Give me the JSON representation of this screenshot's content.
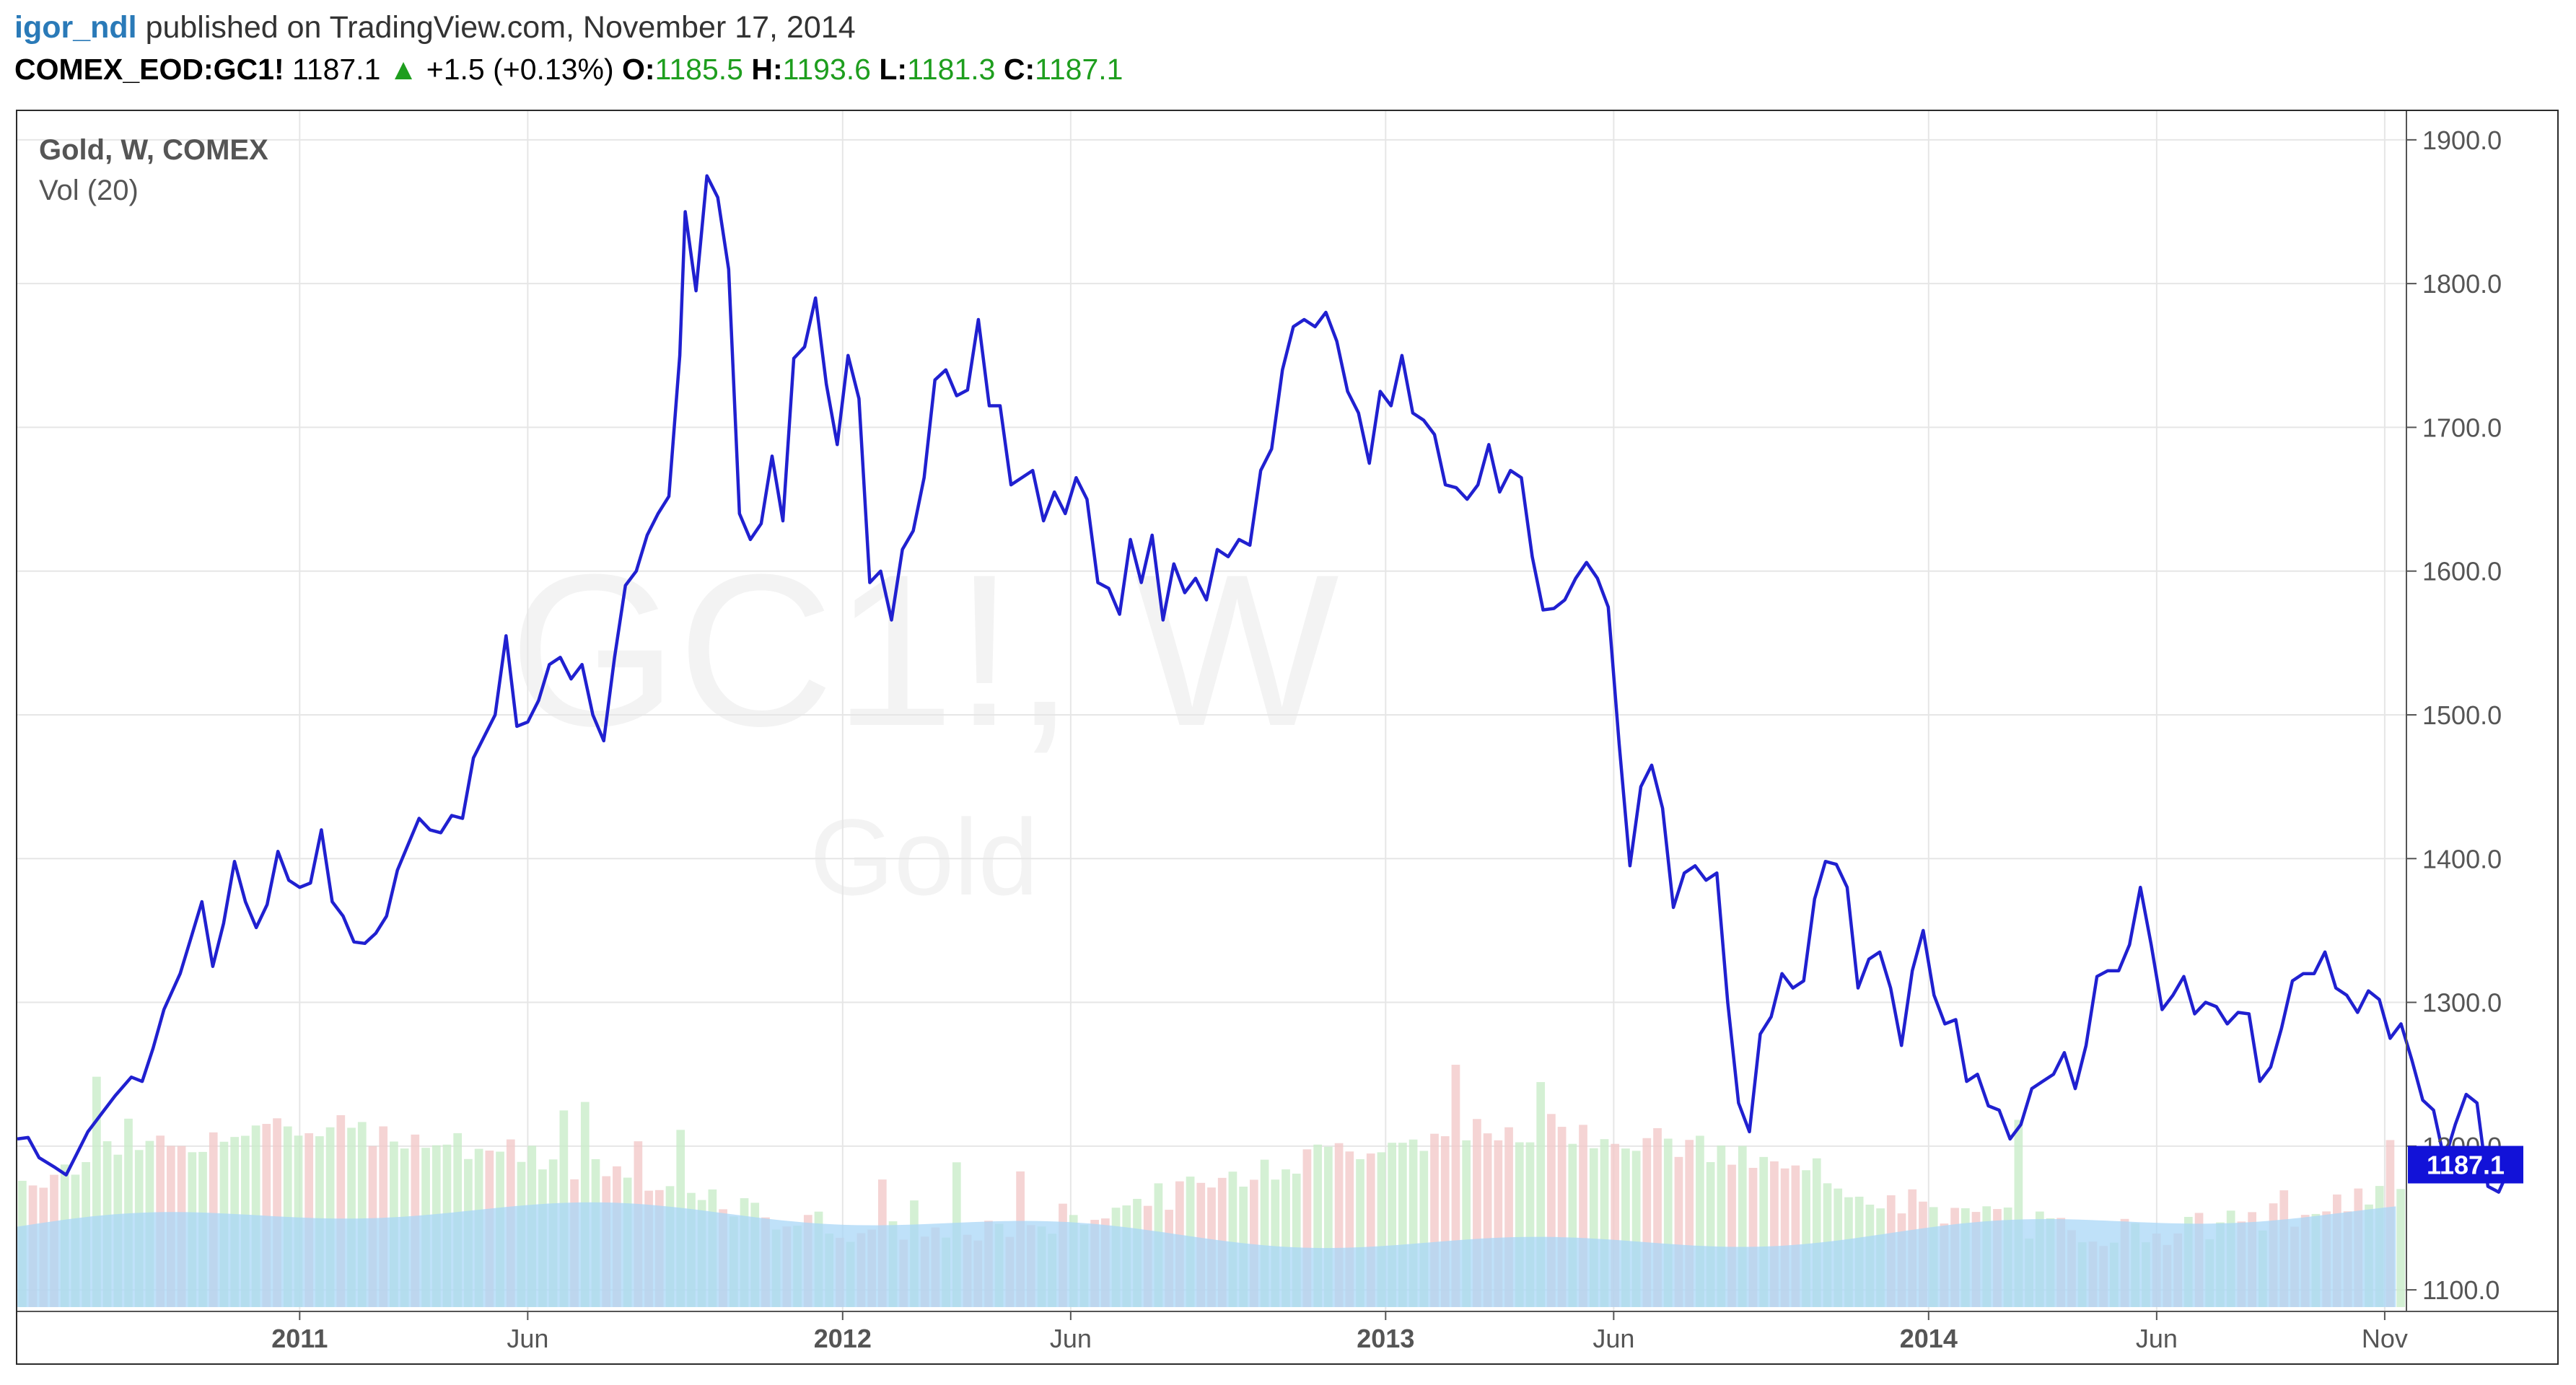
{
  "header": {
    "user": "igor_ndl",
    "published_text": "published on TradingView.com, November 17, 2014",
    "symbol": "COMEX_EOD:GC1!",
    "last": "1187.1",
    "change": "+1.5 (+0.13%)",
    "open_label": "O:",
    "open_value": "1185.5",
    "high_label": "H:",
    "high_value": "1193.6",
    "low_label": "L:",
    "low_value": "1181.3",
    "close_label": "C:",
    "close_value": "1187.1",
    "up_color": "#1e9e1e"
  },
  "legend": {
    "title": "Gold, W, COMEX",
    "volume": "Vol (20)"
  },
  "watermark": {
    "main": "GC1!, W",
    "sub": "Gold"
  },
  "chart_data": {
    "type": "line",
    "title": "Gold, W, COMEX",
    "line_color": "#2020d0",
    "x_ticks": [
      {
        "label": "2011",
        "x": 2011.0,
        "bold": true
      },
      {
        "label": "Jun",
        "x": 2011.42,
        "bold": false
      },
      {
        "label": "2012",
        "x": 2012.0,
        "bold": true
      },
      {
        "label": "Jun",
        "x": 2012.42,
        "bold": false
      },
      {
        "label": "2013",
        "x": 2013.0,
        "bold": true
      },
      {
        "label": "Jun",
        "x": 2013.42,
        "bold": false
      },
      {
        "label": "2014",
        "x": 2014.0,
        "bold": true
      },
      {
        "label": "Jun",
        "x": 2014.42,
        "bold": false
      },
      {
        "label": "Nov",
        "x": 2014.84,
        "bold": false
      }
    ],
    "x_range": [
      2010.48,
      2014.88
    ],
    "y_range": [
      1085,
      1920
    ],
    "y_ticks": [
      1100,
      1200,
      1300,
      1400,
      1500,
      1600,
      1700,
      1800,
      1900
    ],
    "y_tick_labels": [
      "1100.0",
      "1200.0",
      "1300.0",
      "1400.0",
      "1500.0",
      "1600.0",
      "1700.0",
      "1800.0",
      "1900.0"
    ],
    "last_value_label": "1187.1",
    "last_value": 1187.1,
    "grid": true,
    "price": [
      [
        2010.48,
        1205
      ],
      [
        2010.5,
        1206
      ],
      [
        2010.52,
        1192
      ],
      [
        2010.55,
        1185
      ],
      [
        2010.57,
        1180
      ],
      [
        2010.59,
        1195
      ],
      [
        2010.61,
        1210
      ],
      [
        2010.64,
        1225
      ],
      [
        2010.66,
        1235
      ],
      [
        2010.69,
        1248
      ],
      [
        2010.71,
        1245
      ],
      [
        2010.73,
        1268
      ],
      [
        2010.75,
        1295
      ],
      [
        2010.78,
        1320
      ],
      [
        2010.8,
        1345
      ],
      [
        2010.82,
        1370
      ],
      [
        2010.84,
        1325
      ],
      [
        2010.86,
        1355
      ],
      [
        2010.88,
        1398
      ],
      [
        2010.9,
        1370
      ],
      [
        2010.92,
        1352
      ],
      [
        2010.94,
        1368
      ],
      [
        2010.96,
        1405
      ],
      [
        2010.98,
        1385
      ],
      [
        2011.0,
        1380
      ],
      [
        2011.02,
        1383
      ],
      [
        2011.04,
        1420
      ],
      [
        2011.06,
        1370
      ],
      [
        2011.08,
        1360
      ],
      [
        2011.1,
        1342
      ],
      [
        2011.12,
        1341
      ],
      [
        2011.14,
        1348
      ],
      [
        2011.16,
        1360
      ],
      [
        2011.18,
        1392
      ],
      [
        2011.2,
        1410
      ],
      [
        2011.22,
        1428
      ],
      [
        2011.24,
        1420
      ],
      [
        2011.26,
        1418
      ],
      [
        2011.28,
        1430
      ],
      [
        2011.3,
        1428
      ],
      [
        2011.32,
        1470
      ],
      [
        2011.34,
        1485
      ],
      [
        2011.36,
        1500
      ],
      [
        2011.38,
        1555
      ],
      [
        2011.4,
        1492
      ],
      [
        2011.42,
        1495
      ],
      [
        2011.44,
        1510
      ],
      [
        2011.46,
        1535
      ],
      [
        2011.48,
        1540
      ],
      [
        2011.5,
        1525
      ],
      [
        2011.52,
        1535
      ],
      [
        2011.54,
        1500
      ],
      [
        2011.56,
        1482
      ],
      [
        2011.58,
        1540
      ],
      [
        2011.6,
        1590
      ],
      [
        2011.62,
        1600
      ],
      [
        2011.64,
        1625
      ],
      [
        2011.66,
        1640
      ],
      [
        2011.68,
        1652
      ],
      [
        2011.7,
        1750
      ],
      [
        2011.71,
        1850
      ],
      [
        2011.73,
        1795
      ],
      [
        2011.75,
        1875
      ],
      [
        2011.77,
        1860
      ],
      [
        2011.79,
        1810
      ],
      [
        2011.81,
        1640
      ],
      [
        2011.83,
        1622
      ],
      [
        2011.85,
        1633
      ],
      [
        2011.87,
        1680
      ],
      [
        2011.89,
        1635
      ],
      [
        2011.91,
        1748
      ],
      [
        2011.93,
        1756
      ],
      [
        2011.95,
        1790
      ],
      [
        2011.97,
        1730
      ],
      [
        2011.99,
        1688
      ],
      [
        2012.01,
        1750
      ],
      [
        2012.03,
        1720
      ],
      [
        2012.05,
        1592
      ],
      [
        2012.07,
        1600
      ],
      [
        2012.09,
        1566
      ],
      [
        2012.11,
        1615
      ],
      [
        2012.13,
        1628
      ],
      [
        2012.15,
        1665
      ],
      [
        2012.17,
        1733
      ],
      [
        2012.19,
        1740
      ],
      [
        2012.21,
        1722
      ],
      [
        2012.23,
        1726
      ],
      [
        2012.25,
        1775
      ],
      [
        2012.27,
        1715
      ],
      [
        2012.29,
        1715
      ],
      [
        2012.31,
        1660
      ],
      [
        2012.33,
        1665
      ],
      [
        2012.35,
        1670
      ],
      [
        2012.37,
        1635
      ],
      [
        2012.39,
        1655
      ],
      [
        2012.41,
        1640
      ],
      [
        2012.43,
        1665
      ],
      [
        2012.45,
        1650
      ],
      [
        2012.47,
        1592
      ],
      [
        2012.49,
        1588
      ],
      [
        2012.51,
        1570
      ],
      [
        2012.53,
        1622
      ],
      [
        2012.55,
        1592
      ],
      [
        2012.57,
        1625
      ],
      [
        2012.59,
        1566
      ],
      [
        2012.61,
        1605
      ],
      [
        2012.63,
        1585
      ],
      [
        2012.65,
        1595
      ],
      [
        2012.67,
        1580
      ],
      [
        2012.69,
        1615
      ],
      [
        2012.71,
        1610
      ],
      [
        2012.73,
        1622
      ],
      [
        2012.75,
        1618
      ],
      [
        2012.77,
        1670
      ],
      [
        2012.79,
        1685
      ],
      [
        2012.81,
        1740
      ],
      [
        2012.83,
        1770
      ],
      [
        2012.85,
        1775
      ],
      [
        2012.87,
        1770
      ],
      [
        2012.89,
        1780
      ],
      [
        2012.91,
        1760
      ],
      [
        2012.93,
        1725
      ],
      [
        2012.95,
        1710
      ],
      [
        2012.97,
        1675
      ],
      [
        2012.99,
        1725
      ],
      [
        2013.01,
        1715
      ],
      [
        2013.03,
        1750
      ],
      [
        2013.05,
        1710
      ],
      [
        2013.07,
        1705
      ],
      [
        2013.09,
        1695
      ],
      [
        2013.11,
        1660
      ],
      [
        2013.13,
        1658
      ],
      [
        2013.15,
        1650
      ],
      [
        2013.17,
        1660
      ],
      [
        2013.19,
        1688
      ],
      [
        2013.21,
        1655
      ],
      [
        2013.23,
        1670
      ],
      [
        2013.25,
        1665
      ],
      [
        2013.27,
        1610
      ],
      [
        2013.29,
        1573
      ],
      [
        2013.31,
        1574
      ],
      [
        2013.33,
        1580
      ],
      [
        2013.35,
        1595
      ],
      [
        2013.37,
        1606
      ],
      [
        2013.39,
        1595
      ],
      [
        2013.41,
        1575
      ],
      [
        2013.43,
        1480
      ],
      [
        2013.45,
        1395
      ],
      [
        2013.47,
        1450
      ],
      [
        2013.49,
        1465
      ],
      [
        2013.51,
        1435
      ],
      [
        2013.53,
        1366
      ],
      [
        2013.55,
        1390
      ],
      [
        2013.57,
        1395
      ],
      [
        2013.59,
        1385
      ],
      [
        2013.61,
        1390
      ],
      [
        2013.63,
        1300
      ],
      [
        2013.65,
        1230
      ],
      [
        2013.67,
        1210
      ],
      [
        2013.69,
        1278
      ],
      [
        2013.71,
        1290
      ],
      [
        2013.73,
        1320
      ],
      [
        2013.75,
        1310
      ],
      [
        2013.77,
        1315
      ],
      [
        2013.79,
        1372
      ],
      [
        2013.81,
        1398
      ],
      [
        2013.83,
        1396
      ],
      [
        2013.85,
        1380
      ],
      [
        2013.87,
        1310
      ],
      [
        2013.89,
        1330
      ],
      [
        2013.91,
        1335
      ],
      [
        2013.93,
        1310
      ],
      [
        2013.95,
        1270
      ],
      [
        2013.97,
        1322
      ],
      [
        2013.99,
        1350
      ],
      [
        2014.01,
        1305
      ],
      [
        2014.03,
        1285
      ],
      [
        2014.05,
        1288
      ],
      [
        2014.07,
        1245
      ],
      [
        2014.09,
        1250
      ],
      [
        2014.11,
        1228
      ],
      [
        2014.13,
        1225
      ],
      [
        2014.15,
        1205
      ],
      [
        2014.17,
        1215
      ],
      [
        2014.19,
        1240
      ],
      [
        2014.21,
        1245
      ],
      [
        2014.23,
        1250
      ],
      [
        2014.25,
        1265
      ],
      [
        2014.27,
        1240
      ],
      [
        2014.29,
        1270
      ],
      [
        2014.31,
        1318
      ],
      [
        2014.33,
        1322
      ],
      [
        2014.35,
        1322
      ],
      [
        2014.37,
        1340
      ],
      [
        2014.39,
        1380
      ],
      [
        2014.41,
        1340
      ],
      [
        2014.43,
        1295
      ],
      [
        2014.45,
        1305
      ],
      [
        2014.47,
        1318
      ],
      [
        2014.49,
        1292
      ],
      [
        2014.51,
        1300
      ],
      [
        2014.53,
        1297
      ],
      [
        2014.55,
        1285
      ],
      [
        2014.57,
        1293
      ],
      [
        2014.59,
        1292
      ],
      [
        2014.61,
        1245
      ],
      [
        2014.63,
        1255
      ],
      [
        2014.65,
        1282
      ],
      [
        2014.67,
        1315
      ],
      [
        2014.69,
        1320
      ],
      [
        2014.71,
        1320
      ],
      [
        2014.73,
        1335
      ],
      [
        2014.75,
        1310
      ],
      [
        2014.77,
        1305
      ],
      [
        2014.79,
        1293
      ],
      [
        2014.81,
        1308
      ],
      [
        2014.83,
        1302
      ],
      [
        2014.85,
        1275
      ],
      [
        2014.87,
        1285
      ],
      [
        2014.89,
        1260
      ],
      [
        2014.91,
        1232
      ],
      [
        2014.93,
        1225
      ],
      [
        2014.95,
        1190
      ],
      [
        2014.97,
        1215
      ],
      [
        2014.99,
        1236
      ],
      [
        2015.01,
        1230
      ],
      [
        2015.03,
        1172
      ],
      [
        2015.05,
        1168
      ],
      [
        2015.07,
        1185
      ],
      [
        2015.09,
        1187.1
      ]
    ]
  }
}
